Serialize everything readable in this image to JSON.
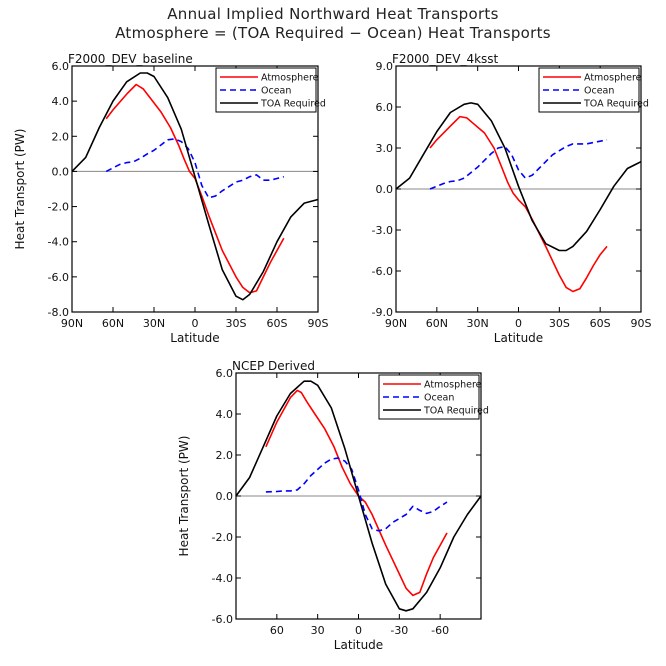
{
  "figure": {
    "title_line1": "Annual Implied Northward Heat Transports",
    "title_line2": "Atmosphere = (TOA Required − Ocean) Heat Transports"
  },
  "chart_data": [
    {
      "type": "line",
      "title": "F2000_DEV_baseline",
      "xlabel": "Latitude",
      "ylabel": "Heat Transport (PW)",
      "xlim": [
        90,
        -90
      ],
      "ylim": [
        -8.0,
        6.0
      ],
      "xticks": [
        90,
        60,
        30,
        0,
        -30,
        -60,
        -90
      ],
      "xtick_labels": [
        "90N",
        "60N",
        "30N",
        "0",
        "30S",
        "60S",
        "90S"
      ],
      "yticks": [
        -8.0,
        -6.0,
        -4.0,
        -2.0,
        0.0,
        2.0,
        4.0,
        6.0
      ],
      "ytick_labels": [
        "-8.0",
        "-6.0",
        "-4.0",
        "-2.0",
        "0.0",
        "2.0",
        "4.0",
        "6.0"
      ],
      "legend_position": "top-right",
      "zero_line": true,
      "series": [
        {
          "name": "Atmosphere",
          "color": "#ff0000",
          "dash": "solid",
          "x": [
            65,
            60,
            50,
            43,
            38,
            32,
            25,
            18,
            12,
            8,
            4,
            0,
            -5,
            -10,
            -20,
            -30,
            -35,
            -40,
            -45,
            -50,
            -55,
            -60,
            -65
          ],
          "y": [
            3.0,
            3.5,
            4.4,
            4.95,
            4.7,
            4.1,
            3.4,
            2.5,
            1.5,
            0.7,
            0.0,
            -0.4,
            -1.4,
            -2.5,
            -4.5,
            -6.0,
            -6.6,
            -6.9,
            -6.8,
            -6.0,
            -5.2,
            -4.5,
            -3.8
          ]
        },
        {
          "name": "Ocean",
          "color": "#0000ff",
          "dash": "dashed",
          "x": [
            65,
            60,
            55,
            50,
            45,
            40,
            35,
            30,
            25,
            20,
            15,
            10,
            5,
            0,
            -5,
            -10,
            -15,
            -20,
            -25,
            -30,
            -35,
            -40,
            -45,
            -50,
            -55,
            -60,
            -65
          ],
          "y": [
            0.0,
            0.2,
            0.4,
            0.5,
            0.55,
            0.75,
            1.0,
            1.2,
            1.5,
            1.8,
            1.85,
            1.7,
            1.3,
            0.5,
            -0.8,
            -1.5,
            -1.4,
            -1.1,
            -0.85,
            -0.6,
            -0.5,
            -0.3,
            -0.2,
            -0.5,
            -0.5,
            -0.4,
            -0.3
          ]
        },
        {
          "name": "TOA Required",
          "color": "#000000",
          "dash": "solid",
          "x": [
            90,
            80,
            70,
            60,
            50,
            40,
            35,
            30,
            20,
            10,
            0,
            -10,
            -20,
            -30,
            -35,
            -40,
            -50,
            -60,
            -70,
            -80,
            -90
          ],
          "y": [
            0.0,
            0.8,
            2.5,
            4.0,
            5.1,
            5.6,
            5.6,
            5.4,
            4.2,
            2.4,
            -0.3,
            -3.0,
            -5.6,
            -7.1,
            -7.3,
            -7.0,
            -5.7,
            -4.0,
            -2.6,
            -1.8,
            -1.6
          ]
        }
      ]
    },
    {
      "type": "line",
      "title": "F2000_DEV_4ksst",
      "xlabel": "Latitude",
      "ylabel": "",
      "xlim": [
        90,
        -90
      ],
      "ylim": [
        -9.0,
        9.0
      ],
      "xticks": [
        90,
        60,
        30,
        0,
        -30,
        -60,
        -90
      ],
      "xtick_labels": [
        "90N",
        "60N",
        "30N",
        "0",
        "30S",
        "60S",
        "90S"
      ],
      "yticks": [
        -9.0,
        -6.0,
        -3.0,
        0.0,
        3.0,
        6.0,
        9.0
      ],
      "ytick_labels": [
        "-9.0",
        "-6.0",
        "-3.0",
        "0.0",
        "3.0",
        "6.0",
        "9.0"
      ],
      "legend_position": "top-right",
      "zero_line": true,
      "series": [
        {
          "name": "Atmosphere",
          "color": "#ff0000",
          "dash": "solid",
          "x": [
            65,
            60,
            50,
            43,
            38,
            32,
            25,
            18,
            12,
            8,
            4,
            0,
            -5,
            -10,
            -20,
            -30,
            -35,
            -40,
            -45,
            -50,
            -55,
            -60,
            -65
          ],
          "y": [
            3.0,
            3.6,
            4.6,
            5.3,
            5.2,
            4.7,
            4.1,
            3.0,
            1.5,
            0.5,
            -0.3,
            -0.8,
            -1.3,
            -2.2,
            -4.2,
            -6.3,
            -7.2,
            -7.5,
            -7.3,
            -6.5,
            -5.6,
            -4.8,
            -4.2
          ]
        },
        {
          "name": "Ocean",
          "color": "#0000ff",
          "dash": "dashed",
          "x": [
            65,
            60,
            55,
            50,
            45,
            40,
            35,
            30,
            25,
            20,
            15,
            10,
            5,
            0,
            -5,
            -10,
            -15,
            -20,
            -25,
            -30,
            -35,
            -40,
            -45,
            -50,
            -55,
            -60,
            -65
          ],
          "y": [
            0.0,
            0.2,
            0.4,
            0.55,
            0.6,
            0.8,
            1.2,
            1.6,
            2.1,
            2.6,
            3.0,
            3.1,
            2.5,
            1.4,
            0.8,
            1.0,
            1.5,
            2.0,
            2.5,
            2.8,
            3.1,
            3.3,
            3.3,
            3.3,
            3.4,
            3.5,
            3.6
          ]
        },
        {
          "name": "TOA Required",
          "color": "#000000",
          "dash": "solid",
          "x": [
            90,
            80,
            70,
            60,
            50,
            40,
            35,
            30,
            20,
            10,
            0,
            -10,
            -20,
            -30,
            -35,
            -40,
            -50,
            -60,
            -70,
            -80,
            -90
          ],
          "y": [
            0.0,
            0.8,
            2.5,
            4.2,
            5.6,
            6.2,
            6.3,
            6.2,
            5.0,
            3.0,
            0.2,
            -2.3,
            -4.0,
            -4.5,
            -4.5,
            -4.2,
            -3.1,
            -1.5,
            0.2,
            1.5,
            2.0
          ]
        }
      ]
    },
    {
      "type": "line",
      "title": "NCEP Derived",
      "xlabel": "Latitude",
      "ylabel": "Heat Transport (PW)",
      "xlim": [
        90,
        -90
      ],
      "ylim": [
        -6.0,
        6.0
      ],
      "xticks": [
        60,
        30,
        0,
        -30,
        -60
      ],
      "xtick_labels": [
        "60",
        "30",
        "0",
        "-30",
        "-60"
      ],
      "yticks": [
        -6.0,
        -4.0,
        -2.0,
        0.0,
        2.0,
        4.0,
        6.0
      ],
      "ytick_labels": [
        "-6.0",
        "-4.0",
        "-2.0",
        "0.0",
        "2.0",
        "4.0",
        "6.0"
      ],
      "legend_position": "top-right",
      "zero_line": true,
      "series": [
        {
          "name": "Atmosphere",
          "color": "#ff0000",
          "dash": "solid",
          "x": [
            68,
            60,
            50,
            45,
            42,
            38,
            32,
            25,
            18,
            12,
            6,
            0,
            -5,
            -10,
            -20,
            -30,
            -35,
            -40,
            -45,
            -50,
            -55,
            -60,
            -65
          ],
          "y": [
            2.4,
            3.6,
            4.8,
            5.15,
            5.05,
            4.6,
            4.0,
            3.3,
            2.4,
            1.4,
            0.6,
            0.0,
            -0.3,
            -0.9,
            -2.4,
            -3.8,
            -4.5,
            -4.85,
            -4.7,
            -3.8,
            -3.0,
            -2.4,
            -1.8
          ]
        },
        {
          "name": "Ocean",
          "color": "#0000ff",
          "dash": "dashed",
          "x": [
            68,
            60,
            55,
            50,
            45,
            40,
            35,
            30,
            25,
            20,
            15,
            10,
            5,
            0,
            -5,
            -10,
            -15,
            -20,
            -25,
            -30,
            -35,
            -40,
            -45,
            -50,
            -55,
            -60,
            -65
          ],
          "y": [
            0.2,
            0.22,
            0.25,
            0.25,
            0.3,
            0.6,
            1.0,
            1.3,
            1.6,
            1.8,
            1.85,
            1.7,
            1.3,
            0.3,
            -0.9,
            -1.6,
            -1.7,
            -1.6,
            -1.3,
            -1.1,
            -0.9,
            -0.5,
            -0.7,
            -0.85,
            -0.75,
            -0.5,
            -0.3
          ]
        },
        {
          "name": "TOA Required",
          "color": "#000000",
          "dash": "solid",
          "x": [
            90,
            80,
            70,
            60,
            50,
            40,
            35,
            30,
            20,
            10,
            0,
            -10,
            -20,
            -30,
            -35,
            -40,
            -50,
            -60,
            -70,
            -80,
            -90
          ],
          "y": [
            0.0,
            0.9,
            2.4,
            3.9,
            5.0,
            5.6,
            5.6,
            5.4,
            4.3,
            2.3,
            0.0,
            -2.3,
            -4.3,
            -5.5,
            -5.6,
            -5.5,
            -4.7,
            -3.5,
            -2.0,
            -0.9,
            0.0
          ]
        }
      ]
    }
  ]
}
